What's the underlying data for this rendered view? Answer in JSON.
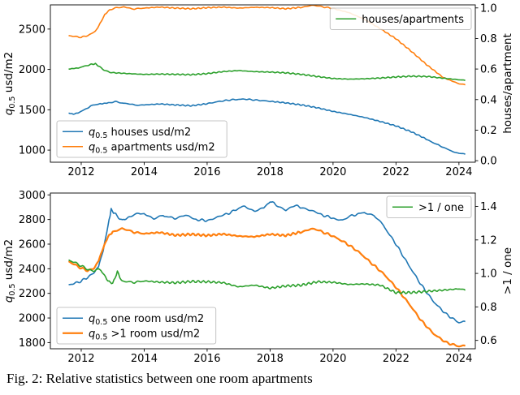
{
  "caption": "Fig. 2: Relative statistics between one room apartments",
  "colors": {
    "blue": "#1f77b4",
    "orange": "#ff7f0e",
    "green": "#2ca02c"
  },
  "chart_data": [
    {
      "type": "line",
      "title": "",
      "xlabel": "",
      "ylabel_left": "q0.5 usd/m2",
      "ylabel_right": "houses/apartment",
      "xlim": [
        2011.02,
        2024.52
      ],
      "xticks": [
        2012,
        2014,
        2016,
        2018,
        2020,
        2022,
        2024
      ],
      "ylim_left": [
        850,
        2800
      ],
      "yticks_left": [
        1000,
        1500,
        2000,
        2500
      ],
      "ylim_right": [
        -0.01,
        1.02
      ],
      "yticks_right": [
        0.0,
        0.2,
        0.4,
        0.6,
        0.8,
        1.0
      ],
      "grid": false,
      "legends": [
        {
          "loc": "upper right",
          "entries": [
            "houses/apartments"
          ]
        },
        {
          "loc": "lower left",
          "entries": [
            "q0.5 houses usd/m2",
            "q0.5 apartments usd/m2"
          ]
        }
      ],
      "series": [
        {
          "name": "q0.5 houses usd/m2",
          "color": "#1f77b4",
          "axis": "left",
          "lw": 1.6,
          "wiggle": 7,
          "x": [
            2011.6,
            2011.75,
            2011.9,
            2012.1,
            2012.3,
            2012.6,
            2012.9,
            2013.1,
            2013.35,
            2013.7,
            2014.0,
            2014.5,
            2015.0,
            2015.5,
            2016.0,
            2016.4,
            2016.8,
            2017.2,
            2017.6,
            2018.0,
            2018.5,
            2019.0,
            2019.5,
            2020.0,
            2020.5,
            2021.0,
            2021.5,
            2022.0,
            2022.5,
            2023.0,
            2023.3,
            2023.7,
            2024.0,
            2024.2
          ],
          "y": [
            1460,
            1445,
            1462,
            1500,
            1545,
            1572,
            1588,
            1600,
            1582,
            1562,
            1560,
            1572,
            1560,
            1550,
            1575,
            1605,
            1625,
            1632,
            1618,
            1605,
            1585,
            1560,
            1525,
            1480,
            1445,
            1405,
            1355,
            1300,
            1225,
            1130,
            1070,
            1000,
            962,
            950
          ]
        },
        {
          "name": "q0.5 apartments usd/m2",
          "color": "#ff7f0e",
          "axis": "left",
          "lw": 1.6,
          "wiggle": 7,
          "x": [
            2011.6,
            2011.8,
            2012.0,
            2012.2,
            2012.45,
            2012.6,
            2012.75,
            2012.9,
            2013.1,
            2013.35,
            2013.6,
            2014.0,
            2014.5,
            2015.0,
            2015.5,
            2016.0,
            2016.5,
            2017.0,
            2017.5,
            2018.0,
            2018.5,
            2019.0,
            2019.3,
            2019.6,
            2020.0,
            2020.5,
            2021.0,
            2021.5,
            2022.0,
            2022.5,
            2023.0,
            2023.5,
            2024.0,
            2024.2
          ],
          "y": [
            2420,
            2408,
            2398,
            2420,
            2470,
            2570,
            2680,
            2738,
            2762,
            2778,
            2748,
            2760,
            2772,
            2760,
            2752,
            2765,
            2772,
            2760,
            2770,
            2766,
            2752,
            2770,
            2792,
            2780,
            2755,
            2705,
            2620,
            2505,
            2380,
            2220,
            2050,
            1900,
            1822,
            1810
          ]
        },
        {
          "name": "houses/apartments",
          "color": "#2ca02c",
          "axis": "right",
          "lw": 1.6,
          "wiggle": 0.004,
          "x": [
            2011.6,
            2011.9,
            2012.1,
            2012.3,
            2012.45,
            2012.6,
            2012.8,
            2013.0,
            2013.5,
            2014.0,
            2014.5,
            2015.0,
            2015.5,
            2016.0,
            2016.5,
            2017.0,
            2017.5,
            2018.0,
            2018.5,
            2019.0,
            2019.5,
            2020.0,
            2020.5,
            2021.0,
            2021.5,
            2022.0,
            2022.5,
            2023.0,
            2023.5,
            2024.0,
            2024.2
          ],
          "y": [
            0.6,
            0.607,
            0.618,
            0.63,
            0.634,
            0.612,
            0.585,
            0.576,
            0.57,
            0.565,
            0.567,
            0.565,
            0.563,
            0.57,
            0.583,
            0.59,
            0.583,
            0.58,
            0.575,
            0.565,
            0.551,
            0.538,
            0.534,
            0.536,
            0.541,
            0.548,
            0.553,
            0.551,
            0.54,
            0.53,
            0.525
          ]
        }
      ]
    },
    {
      "type": "line",
      "title": "",
      "xlabel": "",
      "ylabel_left": "q0.5 usd/m2",
      "ylabel_right": ">1 / one",
      "xlim": [
        2011.02,
        2024.52
      ],
      "xticks": [
        2012,
        2014,
        2016,
        2018,
        2020,
        2022,
        2024
      ],
      "ylim_left": [
        1750,
        3015
      ],
      "yticks_left": [
        1800,
        2000,
        2200,
        2400,
        2600,
        2800,
        3000
      ],
      "ylim_right": [
        0.55,
        1.48
      ],
      "yticks_right": [
        0.6,
        0.8,
        1.0,
        1.2,
        1.4
      ],
      "grid": false,
      "legends": [
        {
          "loc": "upper right",
          "entries": [
            ">1 / one"
          ]
        },
        {
          "loc": "lower left",
          "entries": [
            "q0.5 one room usd/m2",
            "q0.5 >1 room usd/m2"
          ]
        }
      ],
      "series": [
        {
          "name": "q0.5 one room usd/m2",
          "color": "#1f77b4",
          "axis": "left",
          "lw": 1.6,
          "wiggle": 10,
          "x": [
            2011.6,
            2011.8,
            2012.0,
            2012.2,
            2012.4,
            2012.55,
            2012.7,
            2012.85,
            2012.95,
            2013.1,
            2013.3,
            2013.5,
            2013.8,
            2014.0,
            2014.3,
            2014.6,
            2015.0,
            2015.3,
            2015.6,
            2016.0,
            2016.3,
            2016.6,
            2017.0,
            2017.2,
            2017.5,
            2017.8,
            2018.0,
            2018.2,
            2018.5,
            2018.8,
            2019.0,
            2019.3,
            2019.6,
            2020.0,
            2020.3,
            2020.6,
            2021.0,
            2021.3,
            2021.6,
            2022.0,
            2022.4,
            2022.8,
            2023.2,
            2023.6,
            2024.0,
            2024.2
          ],
          "y": [
            2270,
            2282,
            2300,
            2330,
            2365,
            2420,
            2550,
            2750,
            2880,
            2840,
            2790,
            2820,
            2845,
            2850,
            2800,
            2830,
            2810,
            2832,
            2800,
            2792,
            2812,
            2840,
            2890,
            2912,
            2870,
            2892,
            2948,
            2920,
            2880,
            2912,
            2900,
            2870,
            2840,
            2812,
            2790,
            2830,
            2860,
            2830,
            2750,
            2600,
            2430,
            2270,
            2130,
            2030,
            1962,
            1972
          ]
        },
        {
          "name": "q0.5 >1 room usd/m2",
          "color": "#ff7f0e",
          "axis": "left",
          "lw": 2.2,
          "wiggle": 9,
          "x": [
            2011.6,
            2011.8,
            2012.0,
            2012.2,
            2012.4,
            2012.55,
            2012.7,
            2012.85,
            2013.0,
            2013.3,
            2013.6,
            2014.0,
            2014.5,
            2015.0,
            2015.5,
            2016.0,
            2016.5,
            2017.0,
            2017.5,
            2018.0,
            2018.5,
            2019.0,
            2019.3,
            2019.6,
            2020.0,
            2020.4,
            2020.8,
            2021.2,
            2021.6,
            2022.0,
            2022.4,
            2022.8,
            2023.2,
            2023.6,
            2024.0,
            2024.2
          ],
          "y": [
            2460,
            2432,
            2405,
            2385,
            2400,
            2465,
            2570,
            2660,
            2700,
            2722,
            2700,
            2685,
            2695,
            2672,
            2680,
            2670,
            2682,
            2665,
            2660,
            2680,
            2670,
            2700,
            2722,
            2705,
            2665,
            2610,
            2540,
            2450,
            2360,
            2250,
            2120,
            1980,
            1870,
            1800,
            1770,
            1775
          ]
        },
        {
          "name": ">1 / one",
          "color": "#2ca02c",
          "axis": "right",
          "lw": 1.6,
          "wiggle": 0.007,
          "x": [
            2011.6,
            2011.8,
            2012.0,
            2012.2,
            2012.4,
            2012.55,
            2012.7,
            2012.85,
            2013.0,
            2013.15,
            2013.3,
            2013.6,
            2014.0,
            2014.5,
            2015.0,
            2015.5,
            2016.0,
            2016.5,
            2017.0,
            2017.5,
            2018.0,
            2018.5,
            2019.0,
            2019.5,
            2020.0,
            2020.5,
            2021.0,
            2021.5,
            2022.0,
            2022.5,
            2023.0,
            2023.5,
            2024.0,
            2024.2
          ],
          "y": [
            1.08,
            1.065,
            1.045,
            1.025,
            1.012,
            1.03,
            1.0,
            0.955,
            0.94,
            1.01,
            0.95,
            0.945,
            0.955,
            0.948,
            0.944,
            0.952,
            0.95,
            0.945,
            0.92,
            0.93,
            0.912,
            0.925,
            0.93,
            0.95,
            0.947,
            0.934,
            0.937,
            0.93,
            0.885,
            0.886,
            0.893,
            0.9,
            0.908,
            0.9
          ]
        }
      ]
    }
  ]
}
